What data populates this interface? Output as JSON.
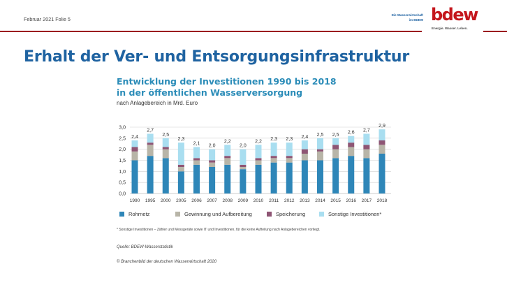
{
  "header": {
    "date_slide": "Februar 2021  Folie 5",
    "tagline_line1": "Die Wasserwirtschaft",
    "tagline_line2": "im BDEW",
    "logo": "bdew",
    "logo_sub": "Energie. Wasser. Leben."
  },
  "slide_title": "Erhalt der Ver- und Entsorgungsinfrastruktur",
  "chart_data": {
    "type": "bar",
    "stacked": true,
    "title": "Entwicklung der Investitionen 1990 bis 2018 in der öffentlichen Wasserversorgung",
    "title_line1": "Entwicklung der Investitionen 1990 bis 2018",
    "title_line2": "in der öffentlichen Wasserversorgung",
    "subtitle": "nach Anlagebereich in Mrd. Euro",
    "xlabel": "",
    "ylabel": "",
    "ylim": [
      0,
      3.0
    ],
    "yticks": [
      "0,0",
      "0,5",
      "1,0",
      "1,5",
      "2,0",
      "2,5",
      "3,0"
    ],
    "ytick_values": [
      0,
      0.5,
      1.0,
      1.5,
      2.0,
      2.5,
      3.0
    ],
    "grid": true,
    "categories": [
      "1990",
      "1995",
      "2000",
      "2005",
      "2006",
      "2007",
      "2008",
      "2009",
      "2010",
      "2011",
      "2012",
      "2013",
      "2014",
      "2015",
      "2016",
      "2017",
      "2018"
    ],
    "totals": [
      2.4,
      2.7,
      2.5,
      2.3,
      2.1,
      2.0,
      2.2,
      2.0,
      2.2,
      2.3,
      2.3,
      2.4,
      2.5,
      2.5,
      2.6,
      2.7,
      2.9
    ],
    "total_labels": [
      "2,4",
      "2,7",
      "2,5",
      "2,3",
      "2,1",
      "2,0",
      "2,2",
      "2,0",
      "2,2",
      "2,3",
      "2,3",
      "2,4",
      "2,5",
      "2,5",
      "2,6",
      "2,7",
      "2,9"
    ],
    "series": [
      {
        "name": "Rohrnetz",
        "color": "#2e86b8",
        "values": [
          1.5,
          1.7,
          1.6,
          1.0,
          1.3,
          1.2,
          1.3,
          1.1,
          1.3,
          1.4,
          1.4,
          1.5,
          1.5,
          1.6,
          1.7,
          1.6,
          1.8
        ]
      },
      {
        "name": "Gewinnung und Aufbereitung",
        "color": "#b8b5a8",
        "values": [
          0.4,
          0.5,
          0.4,
          0.2,
          0.2,
          0.2,
          0.3,
          0.1,
          0.2,
          0.2,
          0.2,
          0.3,
          0.4,
          0.4,
          0.4,
          0.4,
          0.4
        ]
      },
      {
        "name": "Speicherung",
        "color": "#8e5574",
        "values": [
          0.2,
          0.1,
          0.1,
          0.1,
          0.1,
          0.1,
          0.1,
          0.1,
          0.1,
          0.1,
          0.1,
          0.2,
          0.1,
          0.2,
          0.2,
          0.2,
          0.2
        ]
      },
      {
        "name": "Sonstige Investitionen*",
        "color": "#a9def0",
        "values": [
          0.3,
          0.4,
          0.4,
          1.0,
          0.5,
          0.5,
          0.5,
          0.7,
          0.6,
          0.6,
          0.6,
          0.4,
          0.5,
          0.3,
          0.3,
          0.5,
          0.5
        ]
      }
    ],
    "legend_position": "bottom"
  },
  "footnote": "* Sonstige Investitionen – Zähler und Messgeräte sowie IT und Investitionen, für die keine Aufteilung nach Anlagebereichen vorliegt.",
  "source": "Quelle: BDEW-Wasserstatistik",
  "copyright": "© Branchenbild der deutschen Wasserwirtschaft 2020",
  "colors": {
    "accent_red": "#9b1c1f",
    "logo_red": "#c4161c",
    "title_blue": "#1f63a1",
    "chart_title_blue": "#2b8cb8"
  }
}
